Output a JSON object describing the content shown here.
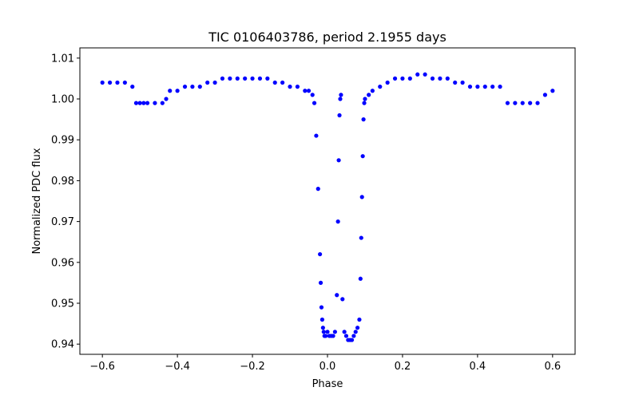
{
  "chart_data": {
    "type": "scatter",
    "title": "TIC 0106403786, period 2.1955 days",
    "xlabel": "Phase",
    "ylabel": "Normalized PDC flux",
    "xlim": [
      -0.66,
      0.66
    ],
    "ylim": [
      0.9375,
      1.0125
    ],
    "xticks": [
      -0.6,
      -0.4,
      -0.2,
      0.0,
      0.2,
      0.4,
      0.6
    ],
    "xtick_labels": [
      "−0.6",
      "−0.4",
      "−0.2",
      "0.0",
      "0.2",
      "0.4",
      "0.6"
    ],
    "yticks": [
      0.94,
      0.95,
      0.96,
      0.97,
      0.98,
      0.99,
      1.0,
      1.01
    ],
    "ytick_labels": [
      "0.94",
      "0.95",
      "0.96",
      "0.97",
      "0.98",
      "0.99",
      "1.00",
      "1.01"
    ],
    "grid": false,
    "marker_color": "#0000ff",
    "series": [
      {
        "x": [
          -0.6,
          -0.58,
          -0.56,
          -0.54,
          -0.52,
          -0.51,
          -0.5,
          -0.49,
          -0.48,
          -0.46,
          -0.44,
          -0.43,
          -0.42,
          -0.4,
          -0.38,
          -0.36,
          -0.34,
          -0.32,
          -0.3,
          -0.28,
          -0.26,
          -0.24,
          -0.22,
          -0.2,
          -0.18,
          -0.16,
          -0.14,
          -0.12,
          -0.1,
          -0.08,
          -0.06,
          -0.05,
          -0.04,
          -0.035,
          -0.03,
          -0.025,
          -0.02,
          -0.018,
          -0.016,
          -0.014,
          -0.012,
          -0.01,
          -0.008,
          -0.005,
          0.0,
          0.005,
          0.01,
          0.015,
          0.02,
          0.025,
          0.028,
          0.03,
          0.032,
          0.034,
          0.036,
          0.04,
          0.045,
          0.05,
          0.055,
          0.06,
          0.065,
          0.07,
          0.075,
          0.08,
          0.085,
          0.088,
          0.09,
          0.092,
          0.094,
          0.096,
          0.098,
          0.1,
          0.11,
          0.12,
          0.14,
          0.16,
          0.18,
          0.2,
          0.22,
          0.24,
          0.26,
          0.28,
          0.3,
          0.32,
          0.34,
          0.36,
          0.38,
          0.4,
          0.42,
          0.44,
          0.46,
          0.48,
          0.5,
          0.52,
          0.54,
          0.56,
          0.58,
          0.6
        ],
        "y": [
          1.004,
          1.004,
          1.004,
          1.004,
          1.003,
          0.999,
          0.999,
          0.999,
          0.999,
          0.999,
          0.999,
          1.0,
          1.002,
          1.002,
          1.003,
          1.003,
          1.003,
          1.004,
          1.004,
          1.005,
          1.005,
          1.005,
          1.005,
          1.005,
          1.005,
          1.005,
          1.004,
          1.004,
          1.003,
          1.003,
          1.002,
          1.002,
          1.001,
          0.999,
          0.991,
          0.978,
          0.962,
          0.955,
          0.949,
          0.946,
          0.944,
          0.943,
          0.942,
          0.942,
          0.943,
          0.942,
          0.942,
          0.942,
          0.943,
          0.952,
          0.97,
          0.985,
          0.996,
          1.0,
          1.001,
          0.951,
          0.943,
          0.942,
          0.941,
          0.941,
          0.941,
          0.942,
          0.943,
          0.944,
          0.946,
          0.956,
          0.966,
          0.976,
          0.986,
          0.995,
          0.999,
          1.0,
          1.001,
          1.002,
          1.003,
          1.004,
          1.005,
          1.005,
          1.005,
          1.006,
          1.006,
          1.005,
          1.005,
          1.005,
          1.004,
          1.004,
          1.003,
          1.003,
          1.003,
          1.003,
          1.003,
          0.999,
          0.999,
          0.999,
          0.999,
          0.999,
          1.001,
          1.002
        ]
      }
    ]
  }
}
